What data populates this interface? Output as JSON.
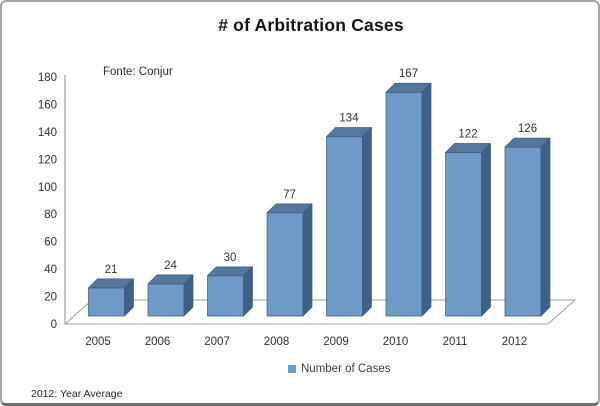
{
  "chart_data": {
    "type": "bar",
    "style": "3d-column",
    "title": "# of Arbitration Cases",
    "annotation": "Fonte: Conjur",
    "footnote": "2012: Year Average",
    "categories": [
      "2005",
      "2006",
      "2007",
      "2008",
      "2009",
      "2010",
      "2011",
      "2012"
    ],
    "series": [
      {
        "name": "Number of Cases",
        "values": [
          21,
          24,
          30,
          77,
          134,
          167,
          122,
          126
        ]
      }
    ],
    "ylim": [
      0,
      180
    ],
    "ytick_step": 20,
    "grid": false,
    "legend_position": "bottom",
    "colors": {
      "bar_front": "#6d9ac6",
      "bar_top": "#54779e",
      "bar_side": "#3d6187",
      "bar_edge": "#3a5b81",
      "axis_line": "#9d9d9d",
      "label_text": "#303030"
    }
  }
}
